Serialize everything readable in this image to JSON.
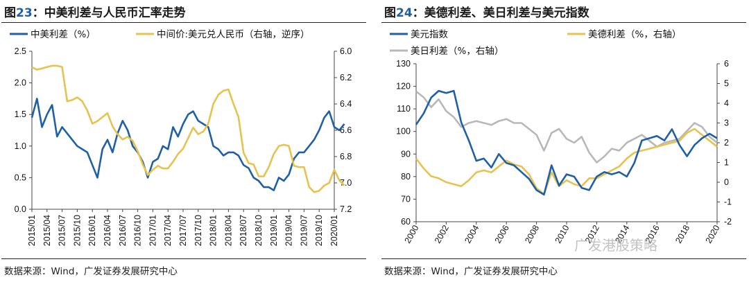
{
  "left": {
    "title_prefix": "图",
    "title_num": "23",
    "title_text": "：中美利差与人民币汇率走势",
    "source": "数据来源：Wind，广发证券发展研究中心",
    "chart_data": {
      "type": "line",
      "legend": [
        "中美利差（%）",
        "中间价:美元兑人民币（右轴，逆序）"
      ],
      "colors": [
        "#1f5fa6",
        "#e6c24f"
      ],
      "x_ticks": [
        "2015/01",
        "2015/04",
        "2015/07",
        "2015/10",
        "2016/01",
        "2016/04",
        "2016/07",
        "2016/10",
        "2017/01",
        "2017/04",
        "2017/07",
        "2017/10",
        "2018/01",
        "2018/04",
        "2018/07",
        "2018/10",
        "2019/01",
        "2019/04",
        "2019/07",
        "2019/10",
        "2020/01"
      ],
      "y_left": {
        "min": 0,
        "max": 2.5,
        "ticks": [
          "0.0",
          "0.5",
          "1.0",
          "1.5",
          "2.0",
          "2.5"
        ]
      },
      "y_right": {
        "min": 6.0,
        "max": 7.2,
        "inverted": true,
        "ticks": [
          "6.0",
          "6.2",
          "6.4",
          "6.6",
          "6.8",
          "7.0",
          "7.2"
        ]
      },
      "series": [
        {
          "name": "中美利差（%）",
          "axis": "left",
          "x": [
            "2015/01",
            "2015/02",
            "2015/03",
            "2015/04",
            "2015/05",
            "2015/06",
            "2015/07",
            "2015/08",
            "2015/09",
            "2015/10",
            "2015/11",
            "2015/12",
            "2016/01",
            "2016/02",
            "2016/03",
            "2016/04",
            "2016/05",
            "2016/06",
            "2016/07",
            "2016/08",
            "2016/09",
            "2016/10",
            "2016/11",
            "2016/12",
            "2017/01",
            "2017/02",
            "2017/03",
            "2017/04",
            "2017/05",
            "2017/06",
            "2017/07",
            "2017/08",
            "2017/09",
            "2017/10",
            "2017/11",
            "2017/12",
            "2018/01",
            "2018/02",
            "2018/03",
            "2018/04",
            "2018/05",
            "2018/06",
            "2018/07",
            "2018/08",
            "2018/09",
            "2018/10",
            "2018/11",
            "2018/12",
            "2019/01",
            "2019/02",
            "2019/03",
            "2019/04",
            "2019/05",
            "2019/06",
            "2019/07",
            "2019/08",
            "2019/09",
            "2019/10",
            "2019/11",
            "2019/12",
            "2020/01",
            "2020/02",
            "2020/03"
          ],
          "values": [
            1.45,
            1.75,
            1.3,
            1.5,
            1.65,
            1.15,
            1.3,
            1.2,
            1.1,
            1.0,
            0.95,
            0.9,
            0.7,
            0.5,
            0.95,
            1.1,
            0.9,
            1.2,
            1.4,
            1.25,
            1.0,
            0.9,
            0.75,
            0.5,
            0.75,
            0.8,
            1.0,
            0.95,
            1.3,
            1.15,
            1.35,
            1.5,
            1.55,
            1.4,
            1.35,
            1.3,
            1.0,
            0.95,
            0.85,
            0.9,
            0.9,
            0.85,
            0.7,
            0.65,
            0.5,
            0.45,
            0.35,
            0.35,
            0.3,
            0.5,
            0.45,
            0.55,
            0.8,
            0.9,
            0.9,
            1.0,
            1.1,
            1.25,
            1.45,
            1.55,
            1.3,
            1.25,
            1.35
          ]
        },
        {
          "name": "中间价:美元兑人民币（右轴，逆序）",
          "axis": "right",
          "x": [
            "2015/01",
            "2015/02",
            "2015/03",
            "2015/04",
            "2015/05",
            "2015/06",
            "2015/07",
            "2015/08",
            "2015/09",
            "2015/10",
            "2015/11",
            "2015/12",
            "2016/01",
            "2016/02",
            "2016/03",
            "2016/04",
            "2016/05",
            "2016/06",
            "2016/07",
            "2016/08",
            "2016/09",
            "2016/10",
            "2016/11",
            "2016/12",
            "2017/01",
            "2017/02",
            "2017/03",
            "2017/04",
            "2017/05",
            "2017/06",
            "2017/07",
            "2017/08",
            "2017/09",
            "2017/10",
            "2017/11",
            "2017/12",
            "2018/01",
            "2018/02",
            "2018/03",
            "2018/04",
            "2018/05",
            "2018/06",
            "2018/07",
            "2018/08",
            "2018/09",
            "2018/10",
            "2018/11",
            "2018/12",
            "2019/01",
            "2019/02",
            "2019/03",
            "2019/04",
            "2019/05",
            "2019/06",
            "2019/07",
            "2019/08",
            "2019/09",
            "2019/10",
            "2019/11",
            "2019/12",
            "2020/01",
            "2020/02",
            "2020/03"
          ],
          "values": [
            6.12,
            6.14,
            6.13,
            6.12,
            6.11,
            6.11,
            6.12,
            6.38,
            6.37,
            6.35,
            6.38,
            6.45,
            6.55,
            6.53,
            6.5,
            6.47,
            6.57,
            6.63,
            6.67,
            6.65,
            6.68,
            6.76,
            6.86,
            6.94,
            6.9,
            6.87,
            6.89,
            6.89,
            6.84,
            6.78,
            6.74,
            6.66,
            6.58,
            6.63,
            6.61,
            6.55,
            6.4,
            6.33,
            6.3,
            6.29,
            6.4,
            6.5,
            6.77,
            6.85,
            6.86,
            6.95,
            6.95,
            6.88,
            6.78,
            6.72,
            6.71,
            6.72,
            6.87,
            6.88,
            6.88,
            7.03,
            7.07,
            7.06,
            7.02,
            7.0,
            6.9,
            6.98,
            7.02
          ]
        }
      ]
    }
  },
  "right": {
    "title_prefix": "图",
    "title_num": "24",
    "title_text": "：美德利差、美日利差与美元指数",
    "source": "数据来源：Wind，广发证券发展研究中心",
    "chart_data": {
      "type": "line",
      "legend": [
        "美元指数",
        "美德利差（%，右轴）",
        "美日利差（%，右轴）"
      ],
      "colors": [
        "#1f5fa6",
        "#e6c24f",
        "#b8b8b8"
      ],
      "x_ticks": [
        "2000",
        "2002",
        "2004",
        "2006",
        "2008",
        "2010",
        "2012",
        "2014",
        "2016",
        "2018",
        "2020"
      ],
      "y_left": {
        "min": 60,
        "max": 130,
        "ticks": [
          "60",
          "70",
          "80",
          "90",
          "100",
          "110",
          "120",
          "130"
        ]
      },
      "y_right": {
        "min": -2,
        "max": 6,
        "ticks": [
          "-2",
          "-1",
          "0",
          "1",
          "2",
          "3",
          "4",
          "5",
          "6"
        ]
      },
      "series": [
        {
          "name": "美元指数",
          "axis": "left",
          "x": [
            2000,
            2000.5,
            2001,
            2001.5,
            2002,
            2002.5,
            2003,
            2003.5,
            2004,
            2004.5,
            2005,
            2005.5,
            2006,
            2006.5,
            2007,
            2007.5,
            2008,
            2008.5,
            2009,
            2009.5,
            2010,
            2010.5,
            2011,
            2011.5,
            2012,
            2012.5,
            2013,
            2013.5,
            2014,
            2014.5,
            2015,
            2015.5,
            2016,
            2016.5,
            2017,
            2017.5,
            2018,
            2018.5,
            2019,
            2019.5,
            2020
          ],
          "values": [
            103,
            108,
            115,
            118,
            117,
            118,
            104,
            96,
            87,
            88,
            84,
            90,
            86,
            85,
            82,
            79,
            74,
            72,
            85,
            76,
            81,
            80,
            75,
            74,
            80,
            82,
            81,
            82,
            80,
            86,
            96,
            97,
            98,
            96,
            101,
            94,
            89,
            94,
            97,
            99,
            97
          ]
        },
        {
          "name": "美德利差（%，右轴）",
          "axis": "right",
          "x": [
            2000,
            2000.5,
            2001,
            2001.5,
            2002,
            2002.5,
            2003,
            2003.5,
            2004,
            2004.5,
            2005,
            2005.5,
            2006,
            2006.5,
            2007,
            2007.5,
            2008,
            2008.5,
            2009,
            2009.5,
            2010,
            2010.5,
            2011,
            2011.5,
            2012,
            2012.5,
            2013,
            2013.5,
            2014,
            2014.5,
            2015,
            2015.5,
            2016,
            2016.5,
            2017,
            2017.5,
            2018,
            2018.5,
            2019,
            2019.5,
            2020
          ],
          "values": [
            1.2,
            0.7,
            0.3,
            0.2,
            0.0,
            -0.1,
            -0.2,
            0.1,
            0.5,
            0.6,
            0.5,
            0.8,
            1.1,
            0.9,
            0.8,
            0.4,
            -0.3,
            -0.6,
            0.5,
            -0.2,
            0.1,
            -0.1,
            -0.2,
            0.2,
            0.2,
            0.4,
            0.6,
            0.8,
            1.2,
            1.5,
            1.6,
            1.7,
            1.8,
            1.9,
            2.0,
            2.1,
            2.5,
            2.7,
            2.4,
            2.1,
            1.8
          ]
        },
        {
          "name": "美日利差（%，右轴）",
          "axis": "right",
          "x": [
            2000,
            2000.5,
            2001,
            2001.5,
            2002,
            2002.5,
            2003,
            2003.5,
            2004,
            2004.5,
            2005,
            2005.5,
            2006,
            2006.5,
            2007,
            2007.5,
            2008,
            2008.5,
            2009,
            2009.5,
            2010,
            2010.5,
            2011,
            2011.5,
            2012,
            2012.5,
            2013,
            2013.5,
            2014,
            2014.5,
            2015,
            2015.5,
            2016,
            2016.5,
            2017,
            2017.5,
            2018,
            2018.5,
            2019,
            2019.5,
            2020
          ],
          "values": [
            4.6,
            4.3,
            3.8,
            4.2,
            3.6,
            3.3,
            2.8,
            3.0,
            3.1,
            3.0,
            2.9,
            3.1,
            3.2,
            3.0,
            3.0,
            2.7,
            2.4,
            1.6,
            2.5,
            2.7,
            2.2,
            2.0,
            2.3,
            1.5,
            1.0,
            1.3,
            1.7,
            1.6,
            2.0,
            2.2,
            2.4,
            2.1,
            1.8,
            2.0,
            2.1,
            2.2,
            2.6,
            3.0,
            2.8,
            2.3,
            2.0
          ]
        }
      ]
    }
  },
  "watermark": "广发港股策略"
}
